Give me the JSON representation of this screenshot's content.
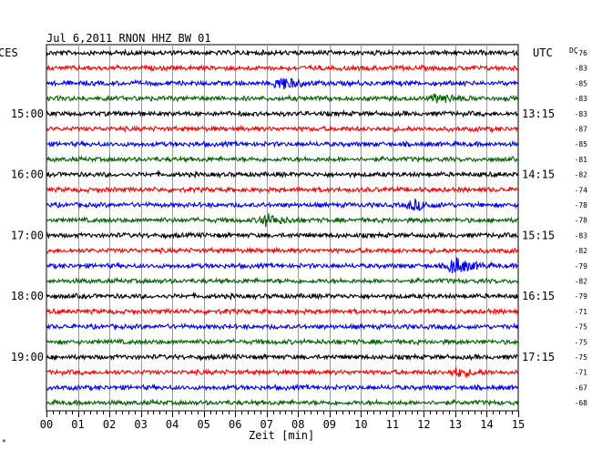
{
  "header": {
    "title": "Jul 6,2011   RNON HHZ BW 01",
    "left_label": "CES",
    "right_label": "UTC",
    "dc_label": "DC"
  },
  "chart_data": {
    "type": "line",
    "title": "Jul 6,2011   RNON HHZ BW 01",
    "xlabel": "Zeit [min]",
    "ylabel": "",
    "xlim": [
      0,
      15
    ],
    "x_ticks": [
      "00",
      "01",
      "02",
      "03",
      "04",
      "05",
      "06",
      "07",
      "08",
      "09",
      "10",
      "11",
      "12",
      "13",
      "14",
      "15"
    ],
    "grid": true,
    "left_time_labels": [
      "15:00",
      "16:00",
      "17:00",
      "18:00",
      "19:00"
    ],
    "right_time_labels": [
      "13:15",
      "14:15",
      "15:15",
      "16:15",
      "17:15"
    ],
    "trace_colors": [
      "#000000",
      "#ff0000",
      "#0000ff",
      "#006400"
    ],
    "dc_offsets": [
      -76,
      -83,
      -85,
      -83,
      -83,
      -87,
      -85,
      -81,
      -82,
      -74,
      -78,
      -78,
      -83,
      -82,
      -79,
      -82,
      -79,
      -71,
      -75,
      -75,
      -75,
      -71,
      -67,
      -68
    ],
    "events": [
      {
        "trace": 2,
        "minute": 7.5,
        "strength": 1.6
      },
      {
        "trace": 3,
        "minute": 12.5,
        "strength": 1.1
      },
      {
        "trace": 10,
        "minute": 11.7,
        "strength": 1.2
      },
      {
        "trace": 11,
        "minute": 7.0,
        "strength": 1.5
      },
      {
        "trace": 14,
        "minute": 13.0,
        "strength": 2.2
      },
      {
        "trace": 21,
        "minute": 13.1,
        "strength": 1.0
      }
    ]
  },
  "corner_mark": "*"
}
